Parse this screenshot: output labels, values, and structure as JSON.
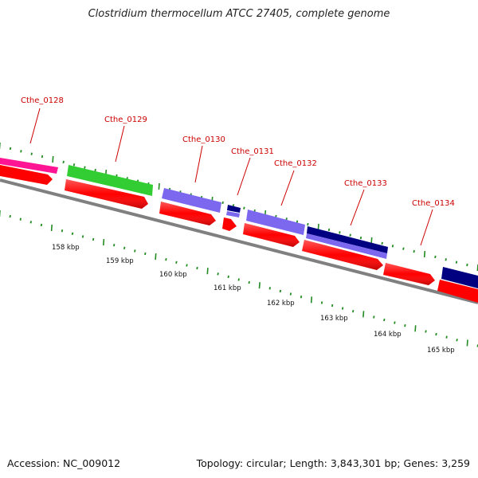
{
  "title": "Clostridium thermocellum ATCC 27405, complete genome",
  "footer": {
    "accession": "Accession: NC_009012",
    "topology": "Topology: circular; Length: 3,843,301 bp; Genes: 3,259"
  },
  "colors": {
    "cds_reverse": "#ff0000",
    "backbone": "#808080",
    "gc_tick": "#228b22",
    "label": "#cc0000",
    "cog_pink": "#ff1493",
    "cog_green": "#32cd32",
    "cog_purple": "#7b68ee",
    "cog_navy": "#000080"
  },
  "genes": [
    {
      "name": "Cthe_0128",
      "cog": "cog_pink"
    },
    {
      "name": "Cthe_0129",
      "cog": "cog_green"
    },
    {
      "name": "Cthe_0130",
      "cog": "cog_purple"
    },
    {
      "name": "Cthe_0131",
      "cog": "cog_navy"
    },
    {
      "name": "Cthe_0132",
      "cog": "cog_purple"
    },
    {
      "name": "Cthe_0133",
      "cog": "cog_navy"
    },
    {
      "name": "Cthe_0134",
      "cog": "cog_navy"
    }
  ],
  "scale_labels": [
    "158 kbp",
    "159 kbp",
    "160 kbp",
    "161 kbp",
    "162 kbp",
    "163 kbp",
    "164 kbp",
    "165 kbp"
  ]
}
